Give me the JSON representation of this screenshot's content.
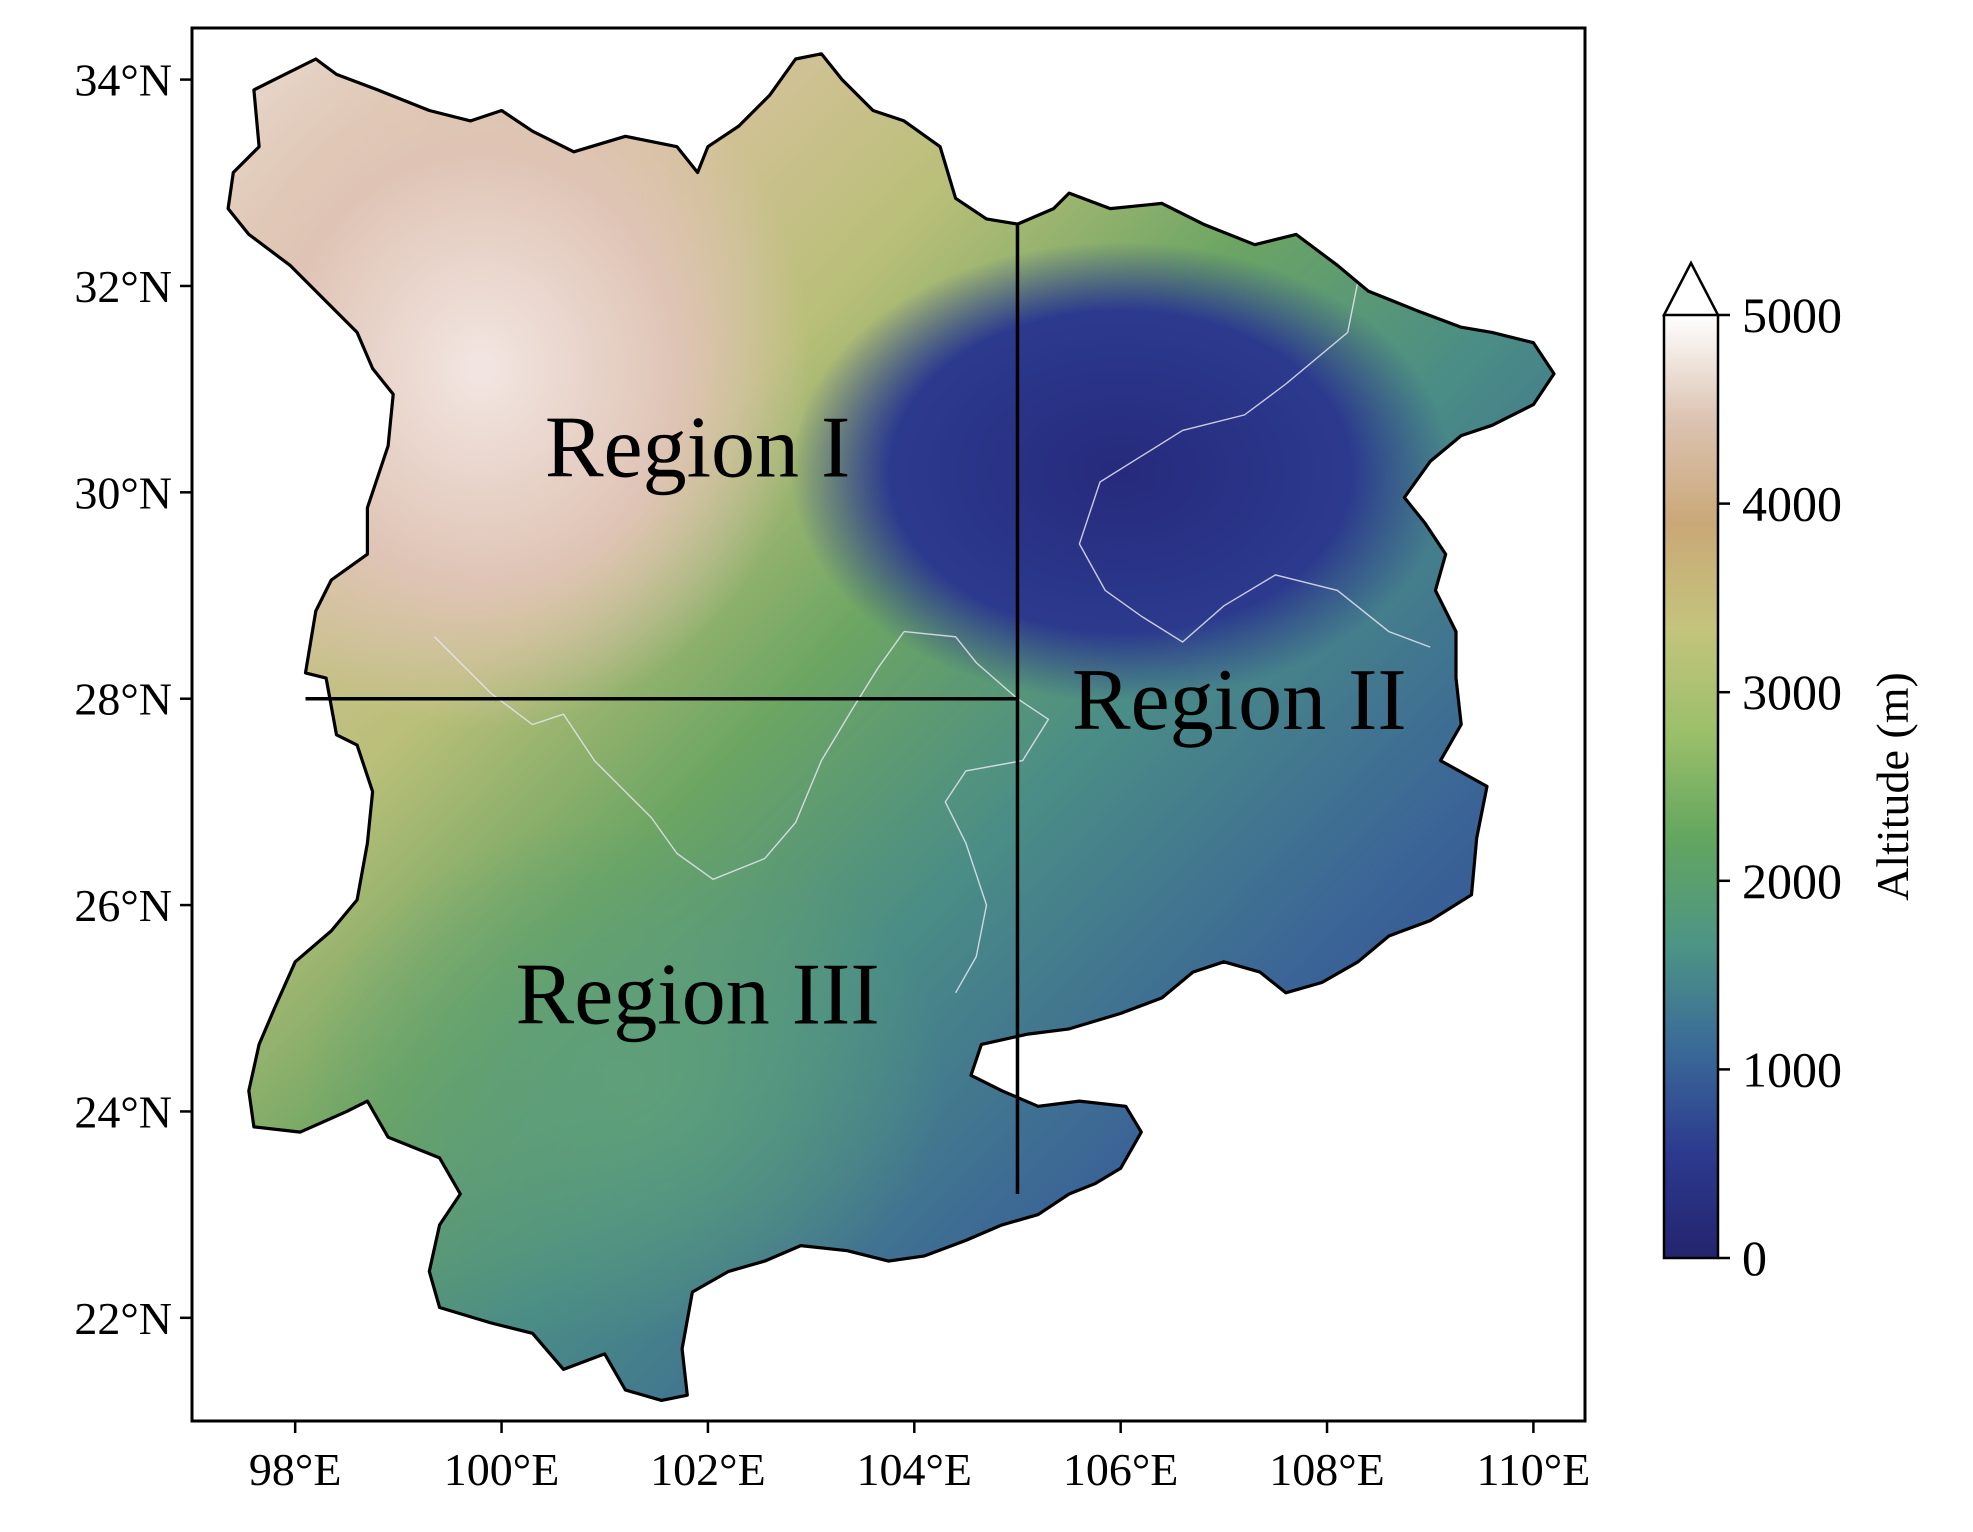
{
  "map": {
    "x_ticks": [
      {
        "value": 98,
        "label": "98°E"
      },
      {
        "value": 100,
        "label": "100°E"
      },
      {
        "value": 102,
        "label": "102°E"
      },
      {
        "value": 104,
        "label": "104°E"
      },
      {
        "value": 106,
        "label": "106°E"
      },
      {
        "value": 108,
        "label": "108°E"
      },
      {
        "value": 110,
        "label": "110°E"
      }
    ],
    "y_ticks": [
      {
        "value": 22,
        "label": "22°N"
      },
      {
        "value": 24,
        "label": "24°N"
      },
      {
        "value": 26,
        "label": "26°N"
      },
      {
        "value": 28,
        "label": "28°N"
      },
      {
        "value": 30,
        "label": "30°N"
      },
      {
        "value": 32,
        "label": "32°N"
      },
      {
        "value": 34,
        "label": "34°N"
      }
    ],
    "xlim": [
      97,
      110.5
    ],
    "ylim": [
      21,
      34.5
    ],
    "divider_lines": [
      {
        "name": "vertical-105E",
        "from": [
          105,
          23.2
        ],
        "to": [
          105,
          32.6
        ]
      },
      {
        "name": "horizontal-28N",
        "from": [
          98.1,
          28
        ],
        "to": [
          105,
          28
        ]
      }
    ],
    "regions": [
      {
        "label": "Region I",
        "lon": 101.9,
        "lat": 30.35
      },
      {
        "label": "Region II",
        "lon": 107.15,
        "lat": 27.9
      },
      {
        "label": "Region III",
        "lon": 101.9,
        "lat": 25.05
      }
    ],
    "colorbar": {
      "label": "Altitude (m)",
      "min": 0,
      "max": 5000,
      "extend": "max",
      "ticks": [
        {
          "value": 0,
          "label": "0"
        },
        {
          "value": 1000,
          "label": "1000"
        },
        {
          "value": 2000,
          "label": "2000"
        },
        {
          "value": 3000,
          "label": "3000"
        },
        {
          "value": 4000,
          "label": "4000"
        },
        {
          "value": 5000,
          "label": "5000"
        }
      ],
      "colors": [
        "#24246e",
        "#2c3a8e",
        "#3a6a98",
        "#4d9585",
        "#62a65f",
        "#9bbf6a",
        "#c4c47c",
        "#c9a877",
        "#dcc3b2",
        "#ffffff"
      ]
    }
  }
}
